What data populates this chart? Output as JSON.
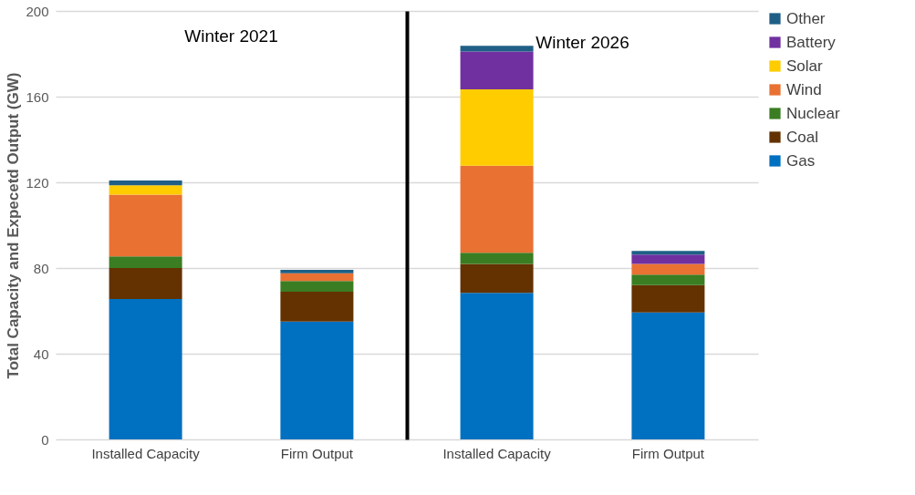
{
  "chart_data": [
    {
      "type": "bar",
      "title": "Winter 2021",
      "ylabel": "Total Capacity and Expecetd Output (GW)",
      "categories": [
        "Installed Capacity",
        "Firm Output"
      ],
      "stacked": true,
      "ylim": [
        0,
        200
      ],
      "yticks": [
        0,
        40,
        80,
        120,
        160,
        200
      ],
      "grid": "y",
      "legend": false,
      "series": [
        {
          "color": "#0070c0",
          "values": [
            65.5,
            55
          ]
        },
        {
          "color": "#633200",
          "values": [
            14.5,
            13.9
          ]
        },
        {
          "color": "#3a7d22",
          "values": [
            5.4,
            5
          ]
        },
        {
          "color": "#e97132",
          "values": [
            28.9,
            3.7
          ]
        },
        {
          "color": "#ffcc00",
          "values": [
            4.3,
            null
          ]
        },
        {
          "color": "#7030a0",
          "values": [
            null,
            null
          ]
        },
        {
          "color": "#1f5f86",
          "values": [
            2.3,
            1.5
          ]
        }
      ]
    },
    {
      "type": "bar",
      "title": "Winter 2026",
      "categories": [
        "Installed Capacity",
        "Firm Output"
      ],
      "stacked": true,
      "ylim": [
        0,
        200
      ],
      "yticks": [
        0,
        40,
        80,
        120,
        160,
        200
      ],
      "grid": "y",
      "legend": "right",
      "tick_labels": "x",
      "series": [
        {
          "name": "Gas",
          "color": "#0070c0",
          "values": [
            68.4,
            59.3
          ]
        },
        {
          "name": "Coal",
          "color": "#633200",
          "values": [
            13.5,
            12.7
          ]
        },
        {
          "name": "Nuclear",
          "color": "#3a7d22",
          "values": [
            5.2,
            4.9
          ]
        },
        {
          "name": "Wind",
          "color": "#e97132",
          "values": [
            40.7,
            5
          ]
        },
        {
          "name": "Solar",
          "color": "#ffcc00",
          "values": [
            35.6,
            null
          ]
        },
        {
          "name": "Battery",
          "color": "#7030a0",
          "values": [
            17.7,
            4.4
          ]
        },
        {
          "name": "Other",
          "color": "#1f5f86",
          "values": [
            2.6,
            1.7
          ]
        }
      ]
    }
  ]
}
